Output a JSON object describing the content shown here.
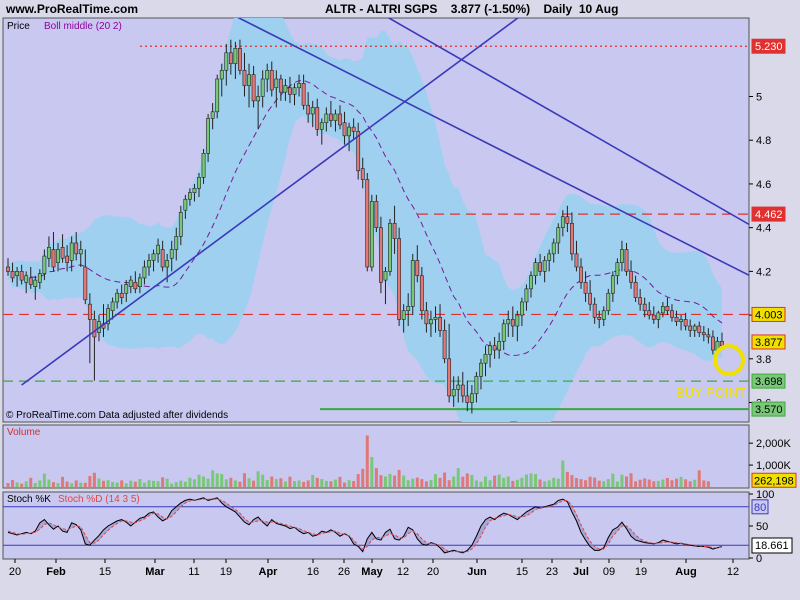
{
  "header": {
    "site": "www.ProRealTime.com",
    "title": "ALTR - ALTRI SGPS    3.877 (-1.50%)    Daily  10 Aug"
  },
  "price_panel": {
    "label_price": "Price",
    "label_indicator": "Boll middle (20 2)",
    "footer": "© ProRealTime.com  Data adjusted after dividends",
    "annotation": "BUY POINT",
    "tick_labels": [
      "5",
      "4.8",
      "4.6",
      "4.4",
      "4.2",
      "4",
      "3.8",
      "3.6"
    ],
    "price_tags": [
      "5.230",
      "4.462",
      "4.003",
      "3.877",
      "3.698",
      "3.570"
    ]
  },
  "volume_panel": {
    "label": "Volume",
    "tick_labels": [
      "2,000K",
      "1,000K"
    ],
    "value_tag": "262,198"
  },
  "stoch_panel": {
    "label_k": "Stoch %K",
    "label_d": "Stoch %D (14 3 5)",
    "tick_labels": [
      "100",
      "50",
      "0"
    ],
    "level_tag": "80",
    "value_tag": "18.661"
  },
  "x_axis": {
    "labels": [
      "20",
      "Feb",
      "15",
      "Mar",
      "11",
      "19",
      "Apr",
      "16",
      "26",
      "May",
      "12",
      "20",
      "Jun",
      "15",
      "23",
      "Jul",
      "09",
      "19",
      "Aug",
      "12"
    ]
  },
  "colors": {
    "background": "#d9d9ea",
    "plot_bg": "#c8c8f0",
    "band": "#a0d0f0",
    "up_candle": "#78c878",
    "down_candle": "#e07878",
    "trendline": "#3a3aba",
    "resistance": "#e03030",
    "support": "#3aaa3a",
    "buy_circle": "#f0e000"
  },
  "chart_data": {
    "type": "candlestick",
    "title": "ALTR - ALTRI SGPS",
    "timeframe": "Daily",
    "last_close": 3.877,
    "change_pct": -1.5,
    "ylim": [
      3.52,
      5.35
    ],
    "horizontal_levels": [
      {
        "value": 5.23,
        "style": "dotted",
        "color": "red"
      },
      {
        "value": 4.462,
        "style": "dashed",
        "color": "red"
      },
      {
        "value": 4.003,
        "style": "dashed",
        "color": "red"
      },
      {
        "value": 3.698,
        "style": "dashed",
        "color": "green"
      },
      {
        "value": 3.57,
        "style": "solid",
        "color": "green"
      }
    ],
    "trendlines": [
      {
        "from": [
          3,
          3.68
        ],
        "to": [
          118,
          5.45
        ]
      },
      {
        "from": [
          45,
          5.42
        ],
        "to": [
          186,
          3.94
        ]
      },
      {
        "from": [
          82,
          5.38
        ],
        "to": [
          186,
          4.14
        ]
      }
    ],
    "candles": [
      [
        4.22,
        4.26,
        4.18,
        4.2
      ],
      [
        4.2,
        4.24,
        4.15,
        4.17
      ],
      [
        4.18,
        4.22,
        4.13,
        4.2
      ],
      [
        4.2,
        4.23,
        4.14,
        4.16
      ],
      [
        4.15,
        4.2,
        4.1,
        4.18
      ],
      [
        4.17,
        4.22,
        4.12,
        4.14
      ],
      [
        4.13,
        4.18,
        4.07,
        4.16
      ],
      [
        4.15,
        4.21,
        4.12,
        4.19
      ],
      [
        4.19,
        4.3,
        4.16,
        4.27
      ],
      [
        4.26,
        4.36,
        4.22,
        4.31
      ],
      [
        4.3,
        4.38,
        4.2,
        4.22
      ],
      [
        4.24,
        4.33,
        4.2,
        4.3
      ],
      [
        4.31,
        4.37,
        4.24,
        4.26
      ],
      [
        4.27,
        4.32,
        4.2,
        4.24
      ],
      [
        4.25,
        4.36,
        4.2,
        4.33
      ],
      [
        4.33,
        4.38,
        4.25,
        4.28
      ],
      [
        4.28,
        4.34,
        4.22,
        4.3
      ],
      [
        4.22,
        4.3,
        4.05,
        4.07
      ],
      [
        4.05,
        4.1,
        3.78,
        3.98
      ],
      [
        3.98,
        4.02,
        3.7,
        3.9
      ],
      [
        3.92,
        4,
        3.88,
        3.97
      ],
      [
        3.96,
        4.05,
        3.9,
        3.94
      ],
      [
        3.96,
        4.05,
        3.93,
        4.03
      ],
      [
        4.02,
        4.08,
        3.98,
        4.06
      ],
      [
        4.06,
        4.12,
        4.03,
        4.1
      ],
      [
        4.1,
        4.14,
        4.05,
        4.08
      ],
      [
        4.1,
        4.16,
        4.06,
        4.14
      ],
      [
        4.13,
        4.18,
        4.1,
        4.16
      ],
      [
        4.15,
        4.2,
        4.1,
        4.12
      ],
      [
        4.13,
        4.19,
        4.1,
        4.17
      ],
      [
        4.17,
        4.25,
        4.14,
        4.22
      ],
      [
        4.22,
        4.28,
        4.18,
        4.25
      ],
      [
        4.25,
        4.3,
        4.2,
        4.28
      ],
      [
        4.28,
        4.35,
        4.24,
        4.32
      ],
      [
        4.3,
        4.34,
        4.2,
        4.22
      ],
      [
        4.22,
        4.28,
        4.15,
        4.25
      ],
      [
        4.26,
        4.34,
        4.2,
        4.3
      ],
      [
        4.3,
        4.4,
        4.25,
        4.36
      ],
      [
        4.36,
        4.5,
        4.32,
        4.47
      ],
      [
        4.48,
        4.55,
        4.44,
        4.53
      ],
      [
        4.53,
        4.58,
        4.5,
        4.56
      ],
      [
        4.56,
        4.6,
        4.52,
        4.58
      ],
      [
        4.58,
        4.65,
        4.54,
        4.63
      ],
      [
        4.63,
        4.76,
        4.6,
        4.74
      ],
      [
        4.74,
        4.92,
        4.7,
        4.9
      ],
      [
        4.9,
        4.97,
        4.85,
        4.93
      ],
      [
        4.93,
        5.1,
        4.9,
        5.08
      ],
      [
        5.08,
        5.15,
        5,
        5.12
      ],
      [
        5.12,
        5.24,
        5.05,
        5.2
      ],
      [
        5.2,
        5.26,
        5.1,
        5.15
      ],
      [
        5.15,
        5.25,
        5.08,
        5.22
      ],
      [
        5.22,
        5.26,
        5.1,
        5.12
      ],
      [
        5.12,
        5.2,
        5,
        5.05
      ],
      [
        5.05,
        5.15,
        4.95,
        5.1
      ],
      [
        5.1,
        5.14,
        4.95,
        4.98
      ],
      [
        4.98,
        5.05,
        4.85,
        5
      ],
      [
        5,
        5.12,
        4.95,
        5.08
      ],
      [
        5.08,
        5.15,
        5.02,
        5.12
      ],
      [
        5.12,
        5.16,
        5,
        5.03
      ],
      [
        5.04,
        5.12,
        4.95,
        5.08
      ],
      [
        5.08,
        5.1,
        4.98,
        5.02
      ],
      [
        5.02,
        5.08,
        4.98,
        5.05
      ],
      [
        5.04,
        5.09,
        4.97,
        5.01
      ],
      [
        5.01,
        5.06,
        4.96,
        5.04
      ],
      [
        5.04,
        5.1,
        5,
        5.06
      ],
      [
        5.06,
        5.1,
        4.94,
        4.96
      ],
      [
        4.96,
        5.02,
        4.88,
        4.92
      ],
      [
        4.92,
        4.98,
        4.86,
        4.95
      ],
      [
        4.95,
        4.99,
        4.82,
        4.85
      ],
      [
        4.85,
        4.9,
        4.78,
        4.88
      ],
      [
        4.88,
        4.95,
        4.84,
        4.92
      ],
      [
        4.92,
        4.98,
        4.86,
        4.89
      ],
      [
        4.89,
        4.94,
        4.84,
        4.92
      ],
      [
        4.92,
        4.96,
        4.85,
        4.87
      ],
      [
        4.88,
        4.93,
        4.78,
        4.82
      ],
      [
        4.82,
        4.88,
        4.75,
        4.86
      ],
      [
        4.86,
        4.9,
        4.8,
        4.84
      ],
      [
        4.84,
        4.88,
        4.62,
        4.66
      ],
      [
        4.67,
        4.72,
        4.58,
        4.62
      ],
      [
        4.62,
        4.65,
        4.2,
        4.22
      ],
      [
        4.22,
        4.55,
        4.2,
        4.52
      ],
      [
        4.52,
        4.55,
        4.38,
        4.4
      ],
      [
        4.4,
        4.45,
        4.1,
        4.15
      ],
      [
        4.16,
        4.22,
        4.05,
        4.2
      ],
      [
        4.2,
        4.44,
        4.18,
        4.42
      ],
      [
        4.42,
        4.5,
        4.28,
        4.35
      ],
      [
        4.35,
        4.4,
        3.95,
        3.98
      ],
      [
        3.98,
        4.05,
        3.92,
        4.02
      ],
      [
        4.02,
        4.1,
        3.95,
        4.04
      ],
      [
        4.04,
        4.28,
        4,
        4.25
      ],
      [
        4.25,
        4.32,
        4.15,
        4.18
      ],
      [
        4.18,
        4.22,
        3.98,
        4.02
      ],
      [
        4.02,
        4.06,
        3.92,
        3.96
      ],
      [
        3.96,
        4.02,
        3.9,
        3.98
      ],
      [
        3.98,
        4.04,
        3.92,
        3.99
      ],
      [
        3.99,
        4.05,
        3.9,
        3.93
      ],
      [
        3.93,
        3.98,
        3.78,
        3.8
      ],
      [
        3.8,
        3.96,
        3.6,
        3.63
      ],
      [
        3.63,
        3.72,
        3.58,
        3.66
      ],
      [
        3.66,
        3.72,
        3.6,
        3.68
      ],
      [
        3.68,
        3.74,
        3.6,
        3.63
      ],
      [
        3.63,
        3.7,
        3.56,
        3.6
      ],
      [
        3.6,
        3.68,
        3.55,
        3.64
      ],
      [
        3.64,
        3.74,
        3.6,
        3.72
      ],
      [
        3.72,
        3.8,
        3.66,
        3.78
      ],
      [
        3.78,
        3.86,
        3.72,
        3.82
      ],
      [
        3.82,
        3.88,
        3.76,
        3.86
      ],
      [
        3.86,
        3.9,
        3.8,
        3.84
      ],
      [
        3.84,
        3.92,
        3.8,
        3.88
      ],
      [
        3.88,
        3.98,
        3.84,
        3.96
      ],
      [
        3.96,
        4.02,
        3.9,
        3.98
      ],
      [
        3.98,
        4.04,
        3.9,
        3.95
      ],
      [
        3.95,
        4.02,
        3.88,
        4
      ],
      [
        4,
        4.08,
        3.95,
        4.06
      ],
      [
        4.06,
        4.14,
        4.02,
        4.12
      ],
      [
        4.12,
        4.2,
        4.08,
        4.18
      ],
      [
        4.18,
        4.26,
        4.14,
        4.24
      ],
      [
        4.24,
        4.28,
        4.18,
        4.2
      ],
      [
        4.2,
        4.27,
        4.15,
        4.25
      ],
      [
        4.25,
        4.3,
        4.2,
        4.28
      ],
      [
        4.28,
        4.35,
        4.24,
        4.33
      ],
      [
        4.33,
        4.42,
        4.28,
        4.4
      ],
      [
        4.4,
        4.48,
        4.36,
        4.45
      ],
      [
        4.45,
        4.5,
        4.38,
        4.42
      ],
      [
        4.42,
        4.47,
        4.25,
        4.28
      ],
      [
        4.28,
        4.34,
        4.2,
        4.22
      ],
      [
        4.22,
        4.26,
        4.12,
        4.15
      ],
      [
        4.15,
        4.2,
        4.06,
        4.1
      ],
      [
        4.1,
        4.16,
        4.02,
        4.05
      ],
      [
        4.05,
        4.08,
        3.96,
        3.99
      ],
      [
        3.99,
        4.02,
        3.94,
        3.98
      ],
      [
        3.98,
        4.04,
        3.95,
        4.02
      ],
      [
        4.02,
        4.12,
        4,
        4.1
      ],
      [
        4.1,
        4.2,
        4.06,
        4.18
      ],
      [
        4.18,
        4.26,
        4.14,
        4.24
      ],
      [
        4.24,
        4.34,
        4.2,
        4.3
      ],
      [
        4.3,
        4.33,
        4.18,
        4.2
      ],
      [
        4.2,
        4.25,
        4.12,
        4.15
      ],
      [
        4.15,
        4.18,
        4.06,
        4.08
      ],
      [
        4.08,
        4.12,
        4.02,
        4.05
      ],
      [
        4.05,
        4.08,
        3.99,
        4.02
      ],
      [
        4.02,
        4.06,
        3.98,
        4
      ],
      [
        4,
        4.04,
        3.96,
        3.98
      ],
      [
        3.98,
        4.02,
        3.94,
        4.01
      ],
      [
        4.01,
        4.06,
        3.99,
        4.04
      ],
      [
        4.04,
        4.08,
        4,
        4.02
      ],
      [
        4.02,
        4.05,
        3.97,
        3.99
      ],
      [
        3.99,
        4.02,
        3.95,
        3.97
      ],
      [
        3.97,
        4,
        3.93,
        3.98
      ],
      [
        3.98,
        4.01,
        3.93,
        3.95
      ],
      [
        3.95,
        3.98,
        3.9,
        3.93
      ],
      [
        3.93,
        3.96,
        3.9,
        3.95
      ],
      [
        3.95,
        3.97,
        3.9,
        3.92
      ],
      [
        3.92,
        3.95,
        3.88,
        3.91
      ],
      [
        3.91,
        3.94,
        3.87,
        3.9
      ],
      [
        3.9,
        3.93,
        3.82,
        3.84
      ],
      [
        3.84,
        3.9,
        3.82,
        3.88
      ],
      [
        3.88,
        3.92,
        3.84,
        3.86
      ]
    ],
    "volume": [
      180,
      320,
      210,
      150,
      260,
      420,
      180,
      300,
      610,
      340,
      220,
      180,
      460,
      250,
      170,
      300,
      200,
      190,
      500,
      650,
      390,
      280,
      310,
      230,
      200,
      300,
      170,
      290,
      240,
      360,
      200,
      310,
      280,
      260,
      440,
      380,
      150,
      220,
      290,
      240,
      420,
      350,
      560,
      480,
      380,
      760,
      620,
      590,
      350,
      420,
      300,
      240,
      630,
      400,
      290,
      720,
      560,
      320,
      480,
      360,
      400,
      250,
      470,
      270,
      300,
      230,
      300,
      550,
      420,
      360,
      280,
      260,
      340,
      460,
      200,
      310,
      270,
      590,
      830,
      2350,
      1370,
      860,
      540,
      480,
      600,
      520,
      780,
      520,
      310,
      380,
      430,
      360,
      260,
      320,
      590,
      420,
      660,
      310,
      480,
      860,
      470,
      620,
      550,
      300,
      240,
      480,
      310,
      520,
      570,
      420,
      480,
      280,
      330,
      420,
      570,
      620,
      590,
      340,
      260,
      300,
      420,
      380,
      1210,
      690,
      540,
      410,
      360,
      310,
      470,
      430,
      290,
      260,
      360,
      610,
      250,
      560,
      480,
      630,
      260,
      330,
      390,
      340,
      260,
      280,
      340,
      410,
      310,
      380,
      460,
      350,
      260,
      330,
      760,
      300,
      262
    ],
    "stoch_k": [
      40,
      38,
      36,
      38,
      40,
      38,
      42,
      55,
      60,
      52,
      45,
      50,
      42,
      40,
      55,
      52,
      44,
      22,
      20,
      28,
      35,
      44,
      50,
      54,
      58,
      60,
      56,
      50,
      56,
      62,
      64,
      70,
      72,
      64,
      58,
      62,
      74,
      80,
      86,
      90,
      92,
      90,
      92,
      94,
      90,
      92,
      94,
      86,
      80,
      76,
      72,
      64,
      56,
      52,
      60,
      64,
      56,
      50,
      60,
      54,
      52,
      50,
      46,
      48,
      42,
      38,
      40,
      34,
      36,
      42,
      40,
      44,
      40,
      34,
      38,
      34,
      22,
      18,
      10,
      30,
      40,
      30,
      28,
      40,
      45,
      30,
      28,
      34,
      48,
      44,
      30,
      22,
      20,
      24,
      22,
      16,
      8,
      10,
      12,
      10,
      8,
      12,
      20,
      34,
      50,
      60,
      64,
      60,
      66,
      70,
      68,
      64,
      60,
      66,
      72,
      76,
      80,
      78,
      80,
      82,
      84,
      90,
      92,
      88,
      72,
      58,
      40,
      28,
      18,
      12,
      12,
      16,
      32,
      44,
      48,
      56,
      46,
      34,
      28,
      26,
      24,
      23,
      22,
      24,
      28,
      26,
      24,
      22,
      23,
      21,
      20,
      19,
      18,
      18,
      17,
      14,
      16,
      18,
      19
    ],
    "stoch_d": [
      42,
      40,
      38,
      37,
      38,
      39,
      40,
      45,
      52,
      55,
      52,
      48,
      46,
      44,
      47,
      50,
      49,
      36,
      24,
      23,
      28,
      36,
      43,
      49,
      54,
      58,
      58,
      56,
      55,
      58,
      61,
      66,
      70,
      69,
      64,
      61,
      65,
      72,
      80,
      86,
      89,
      91,
      91,
      92,
      92,
      92,
      92,
      90,
      86,
      80,
      76,
      70,
      62,
      56,
      56,
      58,
      58,
      56,
      56,
      56,
      54,
      52,
      50,
      48,
      46,
      43,
      40,
      38,
      36,
      38,
      40,
      41,
      42,
      39,
      37,
      35,
      28,
      20,
      14,
      18,
      28,
      32,
      32,
      34,
      38,
      36,
      32,
      31,
      38,
      42,
      38,
      30,
      24,
      22,
      22,
      20,
      14,
      10,
      10,
      10,
      10,
      10,
      14,
      22,
      34,
      48,
      58,
      62,
      64,
      66,
      68,
      67,
      64,
      64,
      66,
      70,
      76,
      78,
      79,
      80,
      82,
      86,
      89,
      90,
      82,
      68,
      52,
      38,
      26,
      18,
      14,
      14,
      22,
      34,
      42,
      50,
      50,
      44,
      36,
      30,
      26,
      24,
      23,
      23,
      24,
      25,
      25,
      24,
      23,
      22,
      21,
      20,
      19,
      18,
      18,
      16,
      16,
      17,
      18
    ]
  }
}
